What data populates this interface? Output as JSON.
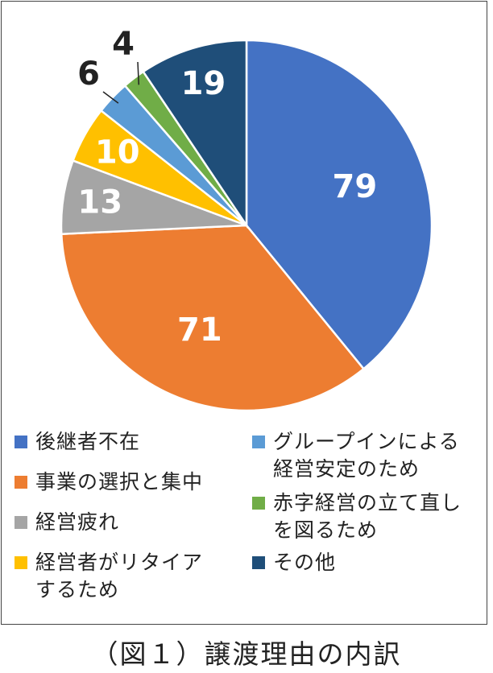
{
  "chart_data": {
    "type": "pie",
    "start_angle_deg": 0,
    "direction": "clockwise",
    "slices": [
      {
        "label": "後継者不在",
        "value": 79,
        "color": "#4472C4",
        "label_color": "#ffffff",
        "outside": false
      },
      {
        "label": "事業の選択と集中",
        "value": 71,
        "color": "#ED7D31",
        "label_color": "#ffffff",
        "outside": false
      },
      {
        "label": "経営疲れ",
        "value": 13,
        "color": "#A5A5A5",
        "label_color": "#ffffff",
        "outside": false
      },
      {
        "label": "経営者がリタイアするため",
        "value": 10,
        "color": "#FFC000",
        "label_color": "#ffffff",
        "outside": false
      },
      {
        "label": "グループインによる経営安定のため",
        "value": 6,
        "color": "#5B9BD5",
        "label_color": "#222222",
        "outside": true
      },
      {
        "label": "赤字経営の立て直しを図るため",
        "value": 4,
        "color": "#70AD47",
        "label_color": "#222222",
        "outside": true
      },
      {
        "label": "その他",
        "value": 19,
        "color": "#1F4E79",
        "label_color": "#ffffff",
        "outside": false
      }
    ],
    "legend": {
      "placement": "bottom",
      "items": [
        {
          "lines": [
            "後継者不在"
          ],
          "color": "#4472C4"
        },
        {
          "lines": [
            "事業の選択と集中"
          ],
          "color": "#ED7D31"
        },
        {
          "lines": [
            "経営疲れ"
          ],
          "color": "#A5A5A5"
        },
        {
          "lines": [
            "経営者がリタイア",
            "するため"
          ],
          "color": "#FFC000"
        },
        {
          "lines": [
            "グループインによる",
            "経営安定のため"
          ],
          "color": "#5B9BD5"
        },
        {
          "lines": [
            "赤字経営の立て直し",
            "を図るため"
          ],
          "color": "#70AD47"
        },
        {
          "lines": [
            "その他"
          ],
          "color": "#1F4E79"
        }
      ]
    }
  },
  "caption": "（図１）譲渡理由の内訳"
}
